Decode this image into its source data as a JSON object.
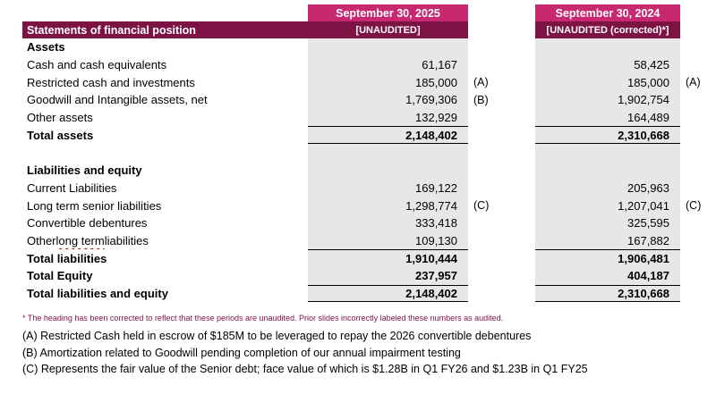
{
  "table": {
    "title": "Statements of financial position",
    "columns": [
      {
        "date": "September 30, 2025",
        "subtitle": "[UNAUDITED]"
      },
      {
        "date": "September 30, 2024",
        "subtitle": "[UNAUDITED (corrected)*]"
      }
    ],
    "rows": [
      {
        "label": "Assets",
        "type": "section"
      },
      {
        "label": "Cash and cash equivalents",
        "v1": "61,167",
        "v2": "58,425"
      },
      {
        "label": "Restricted cash and investments",
        "v1": "185,000",
        "n1": "(A)",
        "v2": "185,000",
        "n2": "(A)"
      },
      {
        "label": "Goodwill and Intangible assets, net",
        "v1": "1,769,306",
        "n1": "(B)",
        "v2": "1,902,754"
      },
      {
        "label": "Other assets",
        "v1": "132,929",
        "v2": "164,489"
      },
      {
        "label": "Total assets",
        "type": "total",
        "v1": "2,148,402",
        "v2": "2,310,668",
        "rule": "both"
      },
      {
        "label": "",
        "type": "spacer"
      },
      {
        "label": "Liabilities and equity",
        "type": "section"
      },
      {
        "label": "Current Liabilities",
        "v1": "169,122",
        "v2": "205,963"
      },
      {
        "label": "Long term senior liabilities",
        "v1": "1,298,774",
        "n1": "(C)",
        "v2": "1,207,041",
        "n2": "(C)"
      },
      {
        "label": "Convertible debentures",
        "v1": "333,418",
        "v2": "325,595"
      },
      {
        "label": "Other long term liabilities",
        "wavy": "long term",
        "v1": "109,130",
        "v2": "167,882"
      },
      {
        "label": "Total liabilities",
        "type": "total",
        "v1": "1,910,444",
        "v2": "1,906,481",
        "rule": "top"
      },
      {
        "label": "Total Equity",
        "type": "total",
        "v1": "237,957",
        "v2": "404,187"
      },
      {
        "label": "Total liabilities and equity",
        "type": "total",
        "v1": "2,148,402",
        "v2": "2,310,668",
        "rule": "both"
      }
    ]
  },
  "footnotes": {
    "corrected": "* The heading has been corrected to reflect that these periods are unaudited. Prior slides incorrectly labeled these numbers as audited.",
    "items": [
      "(A) Restricted Cash held in escrow of $185M to be leveraged to repay the 2026 convertible debentures",
      "(B) Amortization related to Goodwill pending completion of our annual impairment testing",
      "(C) Represents the fair value of the Senior debt; face value of which is $1.28B in Q1 FY26 and $1.23B in Q1 FY25"
    ]
  },
  "colors": {
    "header_pink": "#C7286F",
    "header_maroon": "#7D1245",
    "column_gray": "#E7E7E7"
  }
}
